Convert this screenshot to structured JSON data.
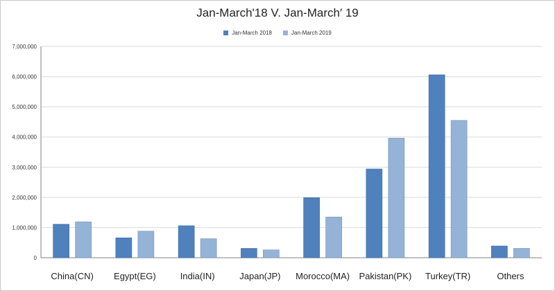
{
  "chart_data": {
    "type": "bar",
    "title": "Jan-March'18  V. Jan-March′  19",
    "categories": [
      "China(CN)",
      "Egypt(EG)",
      "India(IN)",
      "Japan(JP)",
      "Morocco(MA)",
      "Pakistan(PK)",
      "Turkey(TR)",
      "Others"
    ],
    "series": [
      {
        "name": "Jan-March 2018",
        "color": "#4f81bd",
        "values": [
          1110000,
          660000,
          1060000,
          310000,
          1990000,
          2940000,
          6060000,
          390000
        ]
      },
      {
        "name": "Jan-March 2019",
        "color": "#95b3d7",
        "values": [
          1190000,
          880000,
          630000,
          260000,
          1350000,
          3960000,
          4550000,
          310000
        ]
      }
    ],
    "ylim": [
      0,
      7000000
    ],
    "yticks": [
      0,
      1000000,
      2000000,
      3000000,
      4000000,
      5000000,
      6000000,
      7000000
    ],
    "ytick_labels": [
      "0",
      "1,000,000",
      "2,000,000",
      "3,000,000",
      "4,000,000",
      "5,000,000",
      "6,000,000",
      "7,000,000"
    ],
    "xlabel": "",
    "ylabel": "",
    "grid": true,
    "legend_position": "top-center"
  }
}
